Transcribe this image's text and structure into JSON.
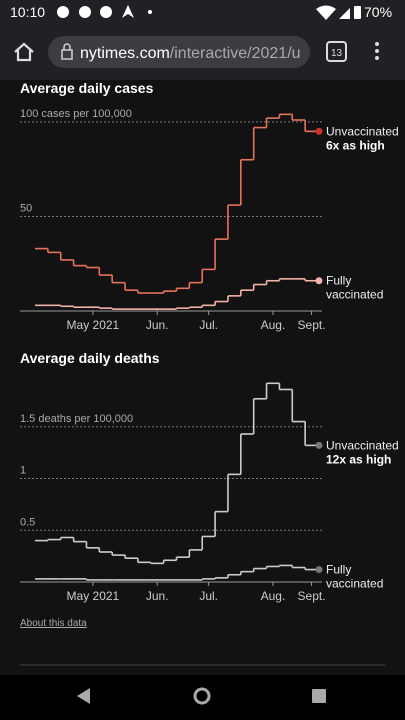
{
  "status_bar": {
    "time": "10:10",
    "battery": "70%"
  },
  "browser": {
    "url_domain": "nytimes.com",
    "url_path": "/interactive/2021/u",
    "tab_count": "13"
  },
  "footer": {
    "link": "About this data"
  },
  "chart_data": [
    {
      "type": "line",
      "step": true,
      "title": "Average daily cases",
      "categories": [
        null,
        null,
        null,
        null,
        "May 2021",
        null,
        null,
        null,
        null,
        "Jun.",
        null,
        null,
        null,
        "Jul.",
        null,
        null,
        null,
        null,
        "Aug.",
        null,
        null,
        "Sept."
      ],
      "series": [
        {
          "name": "Unvaccinated",
          "color": "#e8735a",
          "dot_color": "#d0302a",
          "annotation": "6x as high",
          "values": [
            33,
            31,
            27,
            24,
            23,
            19,
            15,
            11,
            9.5,
            9.5,
            10.5,
            12,
            15,
            22,
            38,
            56,
            80,
            97,
            102,
            104,
            101,
            95
          ]
        },
        {
          "name": "Fully vaccinated",
          "color": "#f4b3a8",
          "dot_color": "#f4b3a8",
          "values": [
            3,
            3,
            2.5,
            2,
            2,
            1.5,
            1,
            1,
            1,
            1,
            1,
            1.5,
            2,
            3,
            5,
            8,
            11,
            14,
            16,
            17,
            17,
            16
          ]
        }
      ],
      "ylim": [
        0,
        110
      ],
      "yticks": [
        {
          "value": 100,
          "label": "100 cases per 100,000"
        },
        50
      ],
      "grid": true
    },
    {
      "type": "line",
      "step": true,
      "title": "Average daily deaths",
      "categories": [
        null,
        null,
        null,
        null,
        "May 2021",
        null,
        null,
        null,
        null,
        "Jun.",
        null,
        null,
        null,
        "Jul.",
        null,
        null,
        null,
        null,
        "Aug.",
        null,
        null,
        "Sept."
      ],
      "series": [
        {
          "name": "Unvaccinated",
          "color": "#cccccc",
          "dot_color": "#777777",
          "annotation": "12x as high",
          "values": [
            0.4,
            0.41,
            0.43,
            0.39,
            0.33,
            0.29,
            0.26,
            0.23,
            0.19,
            0.18,
            0.21,
            0.24,
            0.31,
            0.44,
            0.68,
            1.04,
            1.43,
            1.77,
            1.92,
            1.86,
            1.55,
            1.32
          ]
        },
        {
          "name": "Fully vaccinated",
          "color": "#cccccc",
          "dot_color": "#777777",
          "values": [
            0.03,
            0.03,
            0.03,
            0.03,
            0.02,
            0.02,
            0.02,
            0.02,
            0.02,
            0.02,
            0.02,
            0.02,
            0.02,
            0.03,
            0.04,
            0.07,
            0.1,
            0.13,
            0.15,
            0.16,
            0.14,
            0.12
          ]
        }
      ],
      "ylim": [
        0,
        2
      ],
      "yticks": [
        {
          "value": 1.5,
          "label": "1.5 deaths per 100,000"
        },
        1,
        0.5
      ],
      "grid": true
    }
  ]
}
